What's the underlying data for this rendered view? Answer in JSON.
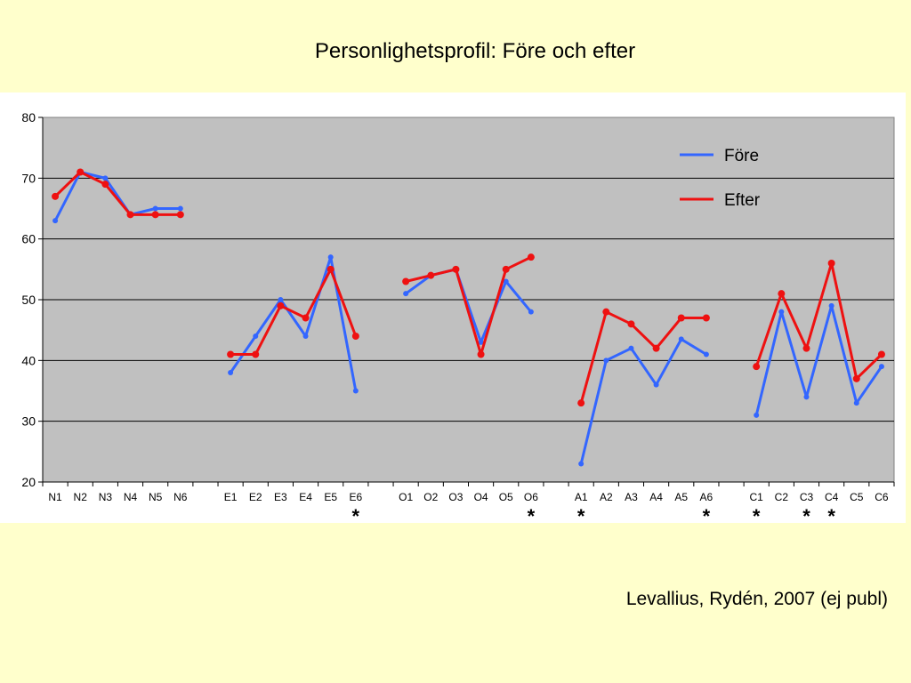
{
  "slide": {
    "title": "Personlighetsprofil: Före och efter",
    "credit": "Levallius, Rydén, 2007 (ej publ)"
  },
  "colors": {
    "background": "#ffffcc",
    "plot_area": "#c0c0c0",
    "fore": "#3366ff",
    "efter": "#ee1111"
  },
  "chart_data": {
    "type": "line",
    "title": "",
    "xlabel": "",
    "ylabel": "",
    "ylim": [
      20,
      80
    ],
    "yticks": [
      20,
      30,
      40,
      50,
      60,
      70,
      80
    ],
    "grid": true,
    "legend_position": "top-right",
    "groups": [
      {
        "categories": [
          "N1",
          "N2",
          "N3",
          "N4",
          "N5",
          "N6"
        ],
        "fore": [
          63,
          71,
          70,
          64,
          65,
          65
        ],
        "efter": [
          67,
          71,
          69,
          64,
          64,
          64
        ]
      },
      {
        "categories": [
          "E1",
          "E2",
          "E3",
          "E4",
          "E5",
          "E6"
        ],
        "fore": [
          38,
          44,
          50,
          44,
          57,
          35
        ],
        "efter": [
          41,
          41,
          49,
          47,
          55,
          44
        ]
      },
      {
        "categories": [
          "O1",
          "O2",
          "O3",
          "O4",
          "O5",
          "O6"
        ],
        "fore": [
          51,
          54,
          55,
          43,
          53,
          48
        ],
        "efter": [
          53,
          54,
          55,
          41,
          55,
          57
        ]
      },
      {
        "categories": [
          "A1",
          "A2",
          "A3",
          "A4",
          "A5",
          "A6"
        ],
        "fore": [
          23,
          40,
          42,
          36,
          43.5,
          41
        ],
        "efter": [
          33,
          48,
          46,
          42,
          47,
          47
        ]
      },
      {
        "categories": [
          "C1",
          "C2",
          "C3",
          "C4",
          "C5",
          "C6"
        ],
        "fore": [
          31,
          48,
          34,
          49,
          33,
          39
        ],
        "efter": [
          39,
          51,
          42,
          56,
          37,
          41
        ]
      }
    ],
    "series": [
      {
        "name": "Före",
        "key": "fore"
      },
      {
        "name": "Efter",
        "key": "efter"
      }
    ],
    "significance_marker": "*",
    "significant_categories": [
      "E6",
      "O6",
      "A1",
      "A6",
      "C1",
      "C3",
      "C4"
    ]
  }
}
